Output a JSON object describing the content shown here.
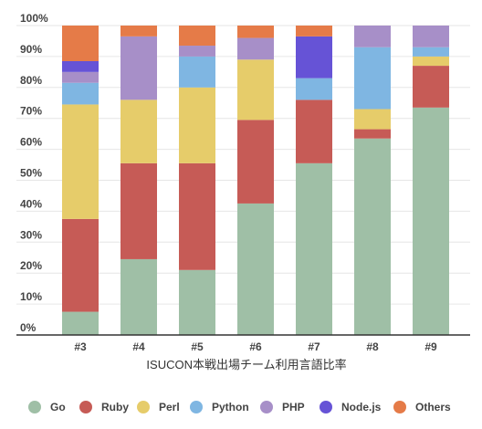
{
  "chart_data": {
    "type": "bar",
    "stacked": true,
    "normalized": true,
    "title": "",
    "xlabel": "ISUCON本戦出場チーム利用言語比率",
    "ylabel": "",
    "ylim": [
      0,
      100
    ],
    "y_ticks": [
      "0%",
      "10%",
      "20%",
      "30%",
      "40%",
      "50%",
      "60%",
      "70%",
      "80%",
      "90%",
      "100%"
    ],
    "categories": [
      "#3",
      "#4",
      "#5",
      "#6",
      "#7",
      "#8",
      "#9"
    ],
    "series": [
      {
        "name": "Go",
        "color": "#9fbfa6",
        "values": [
          7.5,
          24.5,
          21,
          42.5,
          55.5,
          63.5,
          73.5
        ]
      },
      {
        "name": "Ruby",
        "color": "#c65b56",
        "values": [
          30,
          31,
          34.5,
          27,
          20.5,
          3,
          13.5
        ]
      },
      {
        "name": "Perl",
        "color": "#e6cc6a",
        "values": [
          37,
          20.5,
          24.5,
          19.5,
          0,
          6.5,
          3
        ]
      },
      {
        "name": "Python",
        "color": "#7fb6e2",
        "values": [
          7,
          0,
          10,
          0,
          7,
          20,
          3
        ]
      },
      {
        "name": "PHP",
        "color": "#a78fc8",
        "values": [
          3.5,
          20.5,
          3.5,
          7,
          0,
          7,
          7
        ]
      },
      {
        "name": "Node.js",
        "color": "#6653d6",
        "values": [
          3.5,
          0,
          0,
          0,
          13.5,
          0,
          0
        ]
      },
      {
        "name": "Others",
        "color": "#e57b48",
        "values": [
          11.5,
          3.5,
          6.5,
          4,
          3.5,
          0,
          0
        ]
      }
    ],
    "grid": true,
    "legend_position": "bottom"
  }
}
